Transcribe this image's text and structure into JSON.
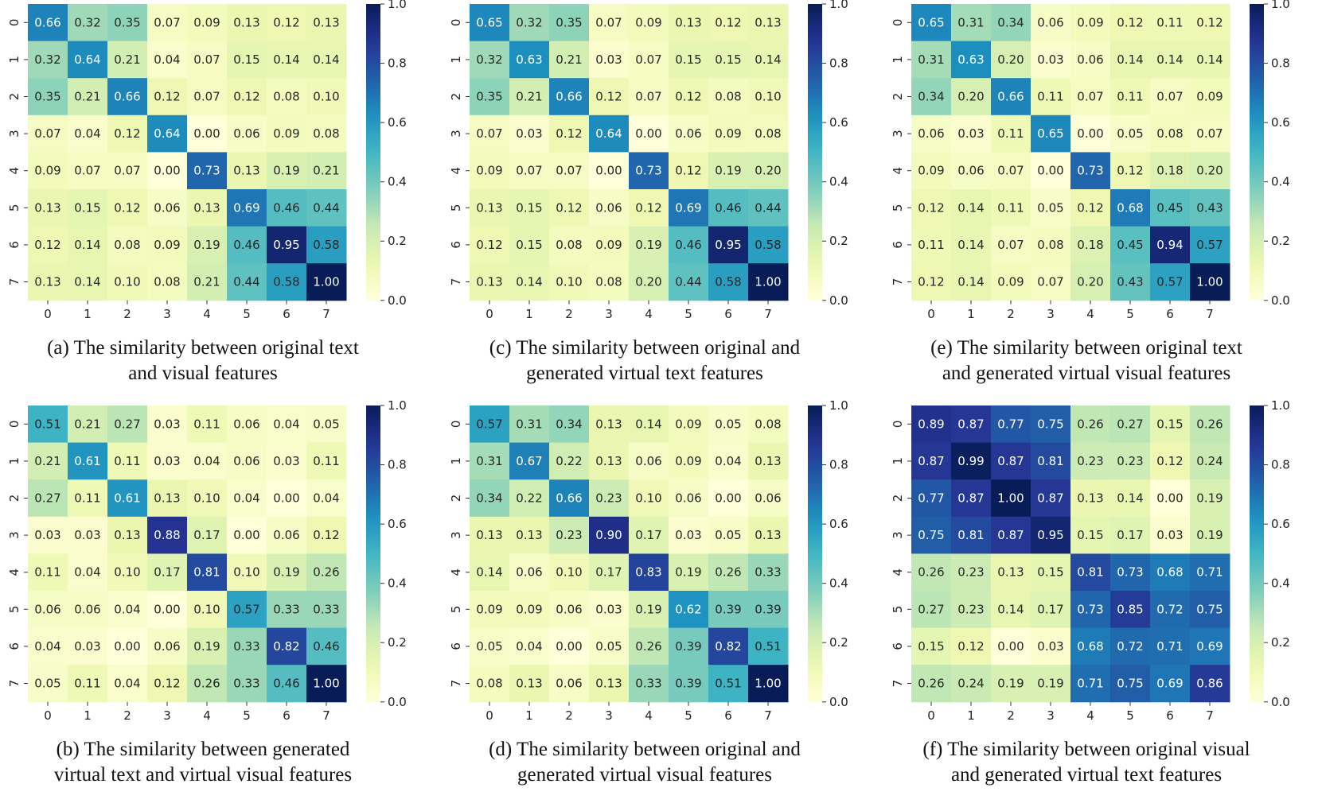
{
  "chart_data": [
    {
      "id": "a",
      "type": "heatmap",
      "caption": [
        "(a)  The similarity between original text",
        "and visual features"
      ],
      "x_ticks": [
        "0",
        "1",
        "2",
        "3",
        "4",
        "5",
        "6",
        "7"
      ],
      "y_ticks": [
        "0",
        "1",
        "2",
        "3",
        "4",
        "5",
        "6",
        "7"
      ],
      "colorbar_ticks": [
        "1.0",
        "0.8",
        "0.6",
        "0.4",
        "0.2",
        "0.0"
      ],
      "colormap": "YlGnBu",
      "vmin": 0,
      "vmax": 1,
      "values": [
        [
          0.66,
          0.32,
          0.35,
          0.07,
          0.09,
          0.13,
          0.12,
          0.13
        ],
        [
          0.32,
          0.64,
          0.21,
          0.04,
          0.07,
          0.15,
          0.14,
          0.14
        ],
        [
          0.35,
          0.21,
          0.66,
          0.12,
          0.07,
          0.12,
          0.08,
          0.1
        ],
        [
          0.07,
          0.04,
          0.12,
          0.64,
          0.0,
          0.06,
          0.09,
          0.08
        ],
        [
          0.09,
          0.07,
          0.07,
          0.0,
          0.73,
          0.13,
          0.19,
          0.21
        ],
        [
          0.13,
          0.15,
          0.12,
          0.06,
          0.13,
          0.69,
          0.46,
          0.44
        ],
        [
          0.12,
          0.14,
          0.08,
          0.09,
          0.19,
          0.46,
          0.95,
          0.58
        ],
        [
          0.13,
          0.14,
          0.1,
          0.08,
          0.21,
          0.44,
          0.58,
          1.0
        ]
      ]
    },
    {
      "id": "c",
      "type": "heatmap",
      "caption": [
        "(c) The similarity  between original and",
        "generated virtual text features"
      ],
      "x_ticks": [
        "0",
        "1",
        "2",
        "3",
        "4",
        "5",
        "6",
        "7"
      ],
      "y_ticks": [
        "0",
        "1",
        "2",
        "3",
        "4",
        "5",
        "6",
        "7"
      ],
      "colorbar_ticks": [
        "1.0",
        "0.8",
        "0.6",
        "0.4",
        "0.2",
        "0.0"
      ],
      "colormap": "YlGnBu",
      "vmin": 0,
      "vmax": 1,
      "values": [
        [
          0.65,
          0.32,
          0.35,
          0.07,
          0.09,
          0.13,
          0.12,
          0.13
        ],
        [
          0.32,
          0.63,
          0.21,
          0.03,
          0.07,
          0.15,
          0.15,
          0.14
        ],
        [
          0.35,
          0.21,
          0.66,
          0.12,
          0.07,
          0.12,
          0.08,
          0.1
        ],
        [
          0.07,
          0.03,
          0.12,
          0.64,
          0.0,
          0.06,
          0.09,
          0.08
        ],
        [
          0.09,
          0.07,
          0.07,
          0.0,
          0.73,
          0.12,
          0.19,
          0.2
        ],
        [
          0.13,
          0.15,
          0.12,
          0.06,
          0.12,
          0.69,
          0.46,
          0.44
        ],
        [
          0.12,
          0.15,
          0.08,
          0.09,
          0.19,
          0.46,
          0.95,
          0.58
        ],
        [
          0.13,
          0.14,
          0.1,
          0.08,
          0.2,
          0.44,
          0.58,
          1.0
        ]
      ]
    },
    {
      "id": "e",
      "type": "heatmap",
      "caption": [
        "(e) The similarity  between original text",
        "and generated virtual visual features"
      ],
      "x_ticks": [
        "0",
        "1",
        "2",
        "3",
        "4",
        "5",
        "6",
        "7"
      ],
      "y_ticks": [
        "0",
        "1",
        "2",
        "3",
        "4",
        "5",
        "6",
        "7"
      ],
      "colorbar_ticks": [
        "1.0",
        "0.8",
        "0.6",
        "0.4",
        "0.2",
        "0.0"
      ],
      "colormap": "YlGnBu",
      "vmin": 0,
      "vmax": 1,
      "values": [
        [
          0.65,
          0.31,
          0.34,
          0.06,
          0.09,
          0.12,
          0.11,
          0.12
        ],
        [
          0.31,
          0.63,
          0.2,
          0.03,
          0.06,
          0.14,
          0.14,
          0.14
        ],
        [
          0.34,
          0.2,
          0.66,
          0.11,
          0.07,
          0.11,
          0.07,
          0.09
        ],
        [
          0.06,
          0.03,
          0.11,
          0.65,
          0.0,
          0.05,
          0.08,
          0.07
        ],
        [
          0.09,
          0.06,
          0.07,
          0.0,
          0.73,
          0.12,
          0.18,
          0.2
        ],
        [
          0.12,
          0.14,
          0.11,
          0.05,
          0.12,
          0.68,
          0.45,
          0.43
        ],
        [
          0.11,
          0.14,
          0.07,
          0.08,
          0.18,
          0.45,
          0.94,
          0.57
        ],
        [
          0.12,
          0.14,
          0.09,
          0.07,
          0.2,
          0.43,
          0.57,
          1.0
        ]
      ]
    },
    {
      "id": "b",
      "type": "heatmap",
      "caption": [
        "(b) The similarity between generated",
        "virtual text and virtual visual features"
      ],
      "x_ticks": [
        "0",
        "1",
        "2",
        "3",
        "4",
        "5",
        "6",
        "7"
      ],
      "y_ticks": [
        "0",
        "1",
        "2",
        "3",
        "4",
        "5",
        "6",
        "7"
      ],
      "colorbar_ticks": [
        "1.0",
        "0.8",
        "0.6",
        "0.4",
        "0.2",
        "0.0"
      ],
      "colormap": "YlGnBu",
      "vmin": 0,
      "vmax": 1,
      "values": [
        [
          0.51,
          0.21,
          0.27,
          0.03,
          0.11,
          0.06,
          0.04,
          0.05
        ],
        [
          0.21,
          0.61,
          0.11,
          0.03,
          0.04,
          0.06,
          0.03,
          0.11
        ],
        [
          0.27,
          0.11,
          0.61,
          0.13,
          0.1,
          0.04,
          0.0,
          0.04
        ],
        [
          0.03,
          0.03,
          0.13,
          0.88,
          0.17,
          0.0,
          0.06,
          0.12
        ],
        [
          0.11,
          0.04,
          0.1,
          0.17,
          0.81,
          0.1,
          0.19,
          0.26
        ],
        [
          0.06,
          0.06,
          0.04,
          0.0,
          0.1,
          0.57,
          0.33,
          0.33
        ],
        [
          0.04,
          0.03,
          0.0,
          0.06,
          0.19,
          0.33,
          0.82,
          0.46
        ],
        [
          0.05,
          0.11,
          0.04,
          0.12,
          0.26,
          0.33,
          0.46,
          1.0
        ]
      ]
    },
    {
      "id": "d",
      "type": "heatmap",
      "caption": [
        "(d) The similarity between original and",
        "generated virtual  visual features"
      ],
      "x_ticks": [
        "0",
        "1",
        "2",
        "3",
        "4",
        "5",
        "6",
        "7"
      ],
      "y_ticks": [
        "0",
        "1",
        "2",
        "3",
        "4",
        "5",
        "6",
        "7"
      ],
      "colorbar_ticks": [
        "1.0",
        "0.8",
        "0.6",
        "0.4",
        "0.2",
        "0.0"
      ],
      "colormap": "YlGnBu",
      "vmin": 0,
      "vmax": 1,
      "values": [
        [
          0.57,
          0.31,
          0.34,
          0.13,
          0.14,
          0.09,
          0.05,
          0.08
        ],
        [
          0.31,
          0.67,
          0.22,
          0.13,
          0.06,
          0.09,
          0.04,
          0.13
        ],
        [
          0.34,
          0.22,
          0.66,
          0.23,
          0.1,
          0.06,
          0.0,
          0.06
        ],
        [
          0.13,
          0.13,
          0.23,
          0.9,
          0.17,
          0.03,
          0.05,
          0.13
        ],
        [
          0.14,
          0.06,
          0.1,
          0.17,
          0.83,
          0.19,
          0.26,
          0.33
        ],
        [
          0.09,
          0.09,
          0.06,
          0.03,
          0.19,
          0.62,
          0.39,
          0.39
        ],
        [
          0.05,
          0.04,
          0.0,
          0.05,
          0.26,
          0.39,
          0.82,
          0.51
        ],
        [
          0.08,
          0.13,
          0.06,
          0.13,
          0.33,
          0.39,
          0.51,
          1.0
        ]
      ]
    },
    {
      "id": "f",
      "type": "heatmap",
      "caption": [
        "(f) The similarity between original visual",
        "and generated virtual text features"
      ],
      "x_ticks": [
        "0",
        "1",
        "2",
        "3",
        "4",
        "5",
        "6",
        "7"
      ],
      "y_ticks": [
        "0",
        "1",
        "2",
        "3",
        "4",
        "5",
        "6",
        "7"
      ],
      "colorbar_ticks": [
        "1.0",
        "0.8",
        "0.6",
        "0.4",
        "0.2",
        "0.0"
      ],
      "colormap": "YlGnBu",
      "vmin": 0,
      "vmax": 1,
      "values": [
        [
          0.89,
          0.87,
          0.77,
          0.75,
          0.26,
          0.27,
          0.15,
          0.26
        ],
        [
          0.87,
          0.99,
          0.87,
          0.81,
          0.23,
          0.23,
          0.12,
          0.24
        ],
        [
          0.77,
          0.87,
          1.0,
          0.87,
          0.13,
          0.14,
          0.0,
          0.19
        ],
        [
          0.75,
          0.81,
          0.87,
          0.95,
          0.15,
          0.17,
          0.03,
          0.19
        ],
        [
          0.26,
          0.23,
          0.13,
          0.15,
          0.81,
          0.73,
          0.68,
          0.71
        ],
        [
          0.27,
          0.23,
          0.14,
          0.17,
          0.73,
          0.85,
          0.72,
          0.75
        ],
        [
          0.15,
          0.12,
          0.0,
          0.03,
          0.68,
          0.72,
          0.71,
          0.69
        ],
        [
          0.26,
          0.24,
          0.19,
          0.19,
          0.71,
          0.75,
          0.69,
          0.86
        ]
      ]
    }
  ]
}
